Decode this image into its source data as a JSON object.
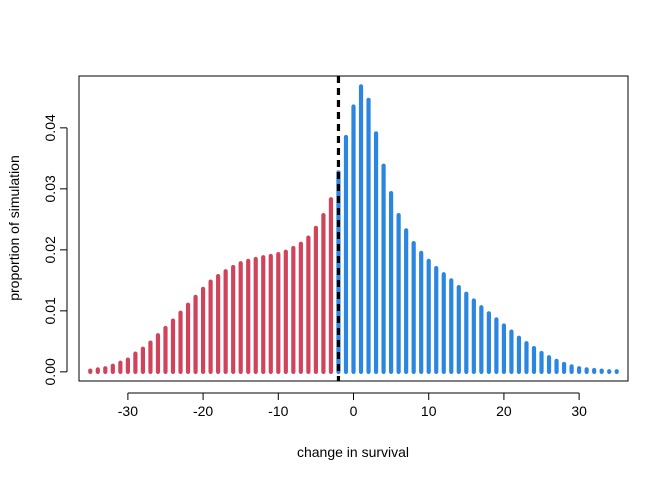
{
  "chart_data": {
    "type": "bar",
    "title": "",
    "xlabel": "change in survival",
    "ylabel": "proportion of simulation",
    "xlim": [
      -36.5,
      36.5
    ],
    "ylim": [
      -0.0015,
      0.0485
    ],
    "xticks": [
      -30,
      -20,
      -10,
      0,
      10,
      20,
      30
    ],
    "xtick_labels": [
      "-30",
      "-20",
      "-10",
      "0",
      "10",
      "20",
      "30"
    ],
    "yticks": [
      0,
      0.01,
      0.02,
      0.03,
      0.04
    ],
    "ytick_labels": [
      "0.00",
      "0.01",
      "0.02",
      "0.03",
      "0.04"
    ],
    "grid": false,
    "threshold_line": {
      "x": -2,
      "style": "dashed",
      "color": "#000000"
    },
    "colors": {
      "negative": "#d0435b",
      "positive": "#2a86e0"
    },
    "x": [
      -35,
      -34,
      -33,
      -32,
      -31,
      -30,
      -29,
      -28,
      -27,
      -26,
      -25,
      -24,
      -23,
      -22,
      -21,
      -20,
      -19,
      -18,
      -17,
      -16,
      -15,
      -14,
      -13,
      -12,
      -11,
      -10,
      -9,
      -8,
      -7,
      -6,
      -5,
      -4,
      -3,
      -2,
      -1,
      0,
      1,
      2,
      3,
      4,
      5,
      6,
      7,
      8,
      9,
      10,
      11,
      12,
      13,
      14,
      15,
      16,
      17,
      18,
      19,
      20,
      21,
      22,
      23,
      24,
      25,
      26,
      27,
      28,
      29,
      30,
      31,
      32,
      33,
      34,
      35
    ],
    "values": [
      0.0002,
      0.0004,
      0.0006,
      0.001,
      0.0015,
      0.002,
      0.003,
      0.0038,
      0.0048,
      0.006,
      0.0072,
      0.0084,
      0.0097,
      0.011,
      0.0123,
      0.0136,
      0.0148,
      0.0157,
      0.0165,
      0.0172,
      0.0178,
      0.0182,
      0.0185,
      0.0188,
      0.019,
      0.0193,
      0.0197,
      0.0203,
      0.021,
      0.022,
      0.0236,
      0.0257,
      0.0283,
      0.0327,
      0.0385,
      0.0435,
      0.0468,
      0.0446,
      0.0391,
      0.0338,
      0.0293,
      0.0257,
      0.0232,
      0.0211,
      0.0195,
      0.0182,
      0.017,
      0.016,
      0.015,
      0.0139,
      0.0128,
      0.0117,
      0.0106,
      0.0096,
      0.0086,
      0.0076,
      0.0066,
      0.0056,
      0.0047,
      0.0039,
      0.0031,
      0.0024,
      0.0018,
      0.0013,
      0.0009,
      0.0006,
      0.0004,
      0.0003,
      0.0002,
      0.0001,
      0.0001
    ]
  }
}
